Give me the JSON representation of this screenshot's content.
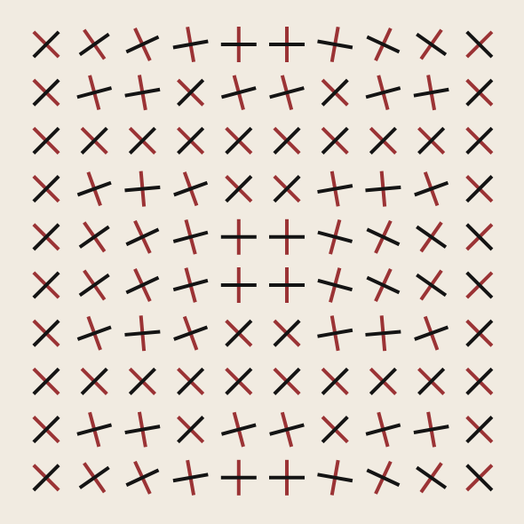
{
  "colors": {
    "background": "#f1ebe1",
    "red": "#9b3335",
    "black": "#141414"
  },
  "grid": {
    "rows": 10,
    "cols": 10,
    "cross_angles_deg": [
      [
        45,
        55,
        65,
        80,
        90,
        90,
        100,
        115,
        125,
        135
      ],
      [
        45,
        75,
        80,
        45,
        75,
        75,
        45,
        75,
        80,
        45
      ],
      [
        45,
        45,
        45,
        45,
        45,
        45,
        45,
        45,
        45,
        45
      ],
      [
        45,
        70,
        85,
        70,
        45,
        45,
        80,
        85,
        70,
        45
      ],
      [
        45,
        55,
        65,
        75,
        90,
        90,
        105,
        115,
        125,
        135
      ],
      [
        45,
        55,
        65,
        75,
        90,
        90,
        105,
        115,
        125,
        135
      ],
      [
        45,
        70,
        85,
        70,
        45,
        45,
        80,
        85,
        70,
        45
      ],
      [
        45,
        45,
        45,
        45,
        45,
        45,
        45,
        45,
        45,
        45
      ],
      [
        45,
        75,
        80,
        45,
        75,
        75,
        45,
        75,
        80,
        45
      ],
      [
        45,
        55,
        65,
        80,
        90,
        90,
        100,
        115,
        125,
        135
      ]
    ]
  }
}
